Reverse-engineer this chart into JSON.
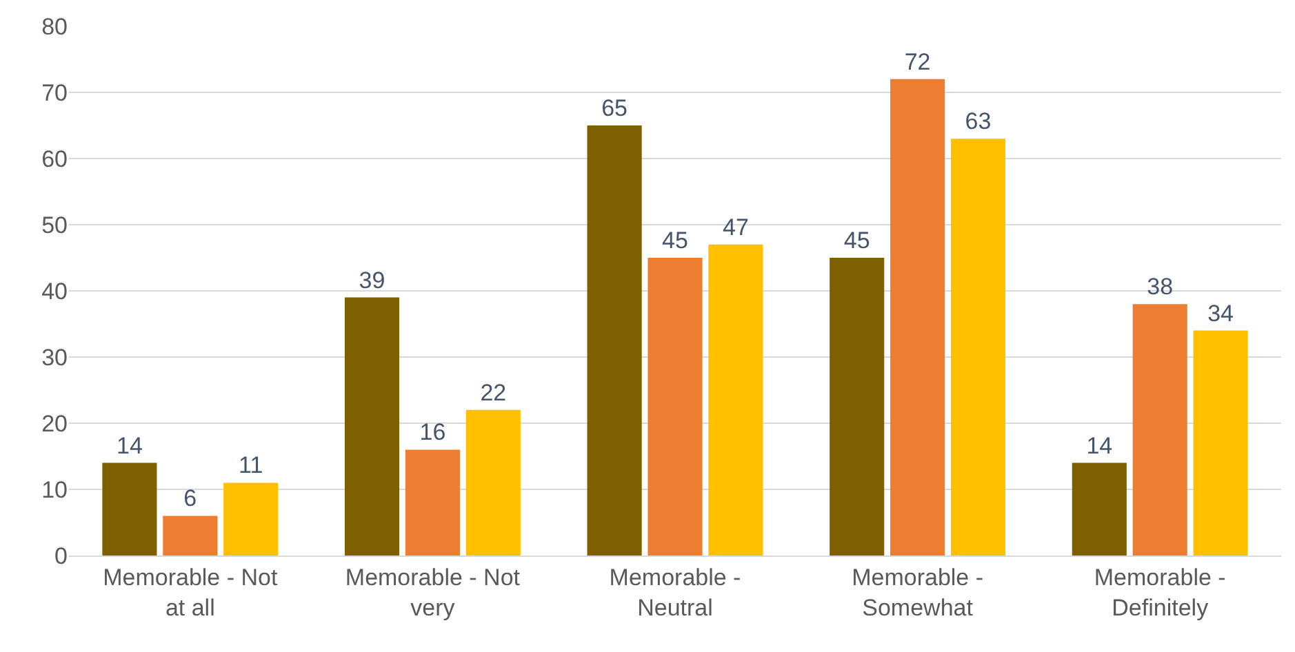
{
  "chart_data": {
    "type": "bar",
    "categories": [
      "Memorable - Not at all",
      "Memorable - Not very",
      "Memorable - Neutral",
      "Memorable - Somewhat",
      "Memorable - Definitely"
    ],
    "series": [
      {
        "color": "#7f6000",
        "values": [
          14,
          39,
          65,
          45,
          14
        ]
      },
      {
        "color": "#ed7d31",
        "values": [
          6,
          16,
          45,
          72,
          38
        ]
      },
      {
        "color": "#ffc000",
        "values": [
          11,
          22,
          47,
          63,
          34
        ]
      }
    ],
    "ylim": [
      0,
      80
    ],
    "yticks": [
      0,
      10,
      20,
      30,
      40,
      50,
      60,
      70,
      80
    ],
    "grid": "y",
    "data_labels": true
  }
}
